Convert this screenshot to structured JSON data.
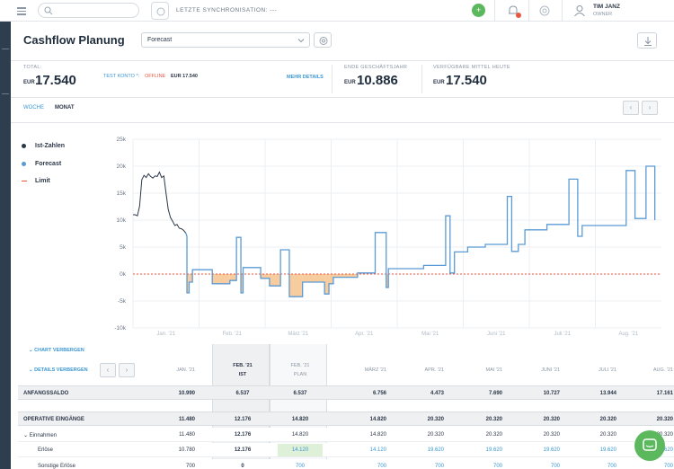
{
  "topbar": {
    "search_placeholder": "",
    "sync_text": "LETZTE SYNCHRONISATION: ---",
    "add_label": "+",
    "user_name": "TIM JANZ",
    "user_role": "OWNER"
  },
  "header": {
    "title": "Cashflow Planung",
    "scenario_selected": "Forecast"
  },
  "kpis": {
    "total_label": "TOTAL:",
    "total_currency": "EUR",
    "total_value": "17.540",
    "test_account_label": "TEST KONTO *:",
    "test_account_status": "OFFLINE",
    "test_account_value": "EUR 17.540",
    "more_details": "MEHR DETAILS",
    "year_end_label": "ENDE GESCHÄFTSJAHR",
    "year_end_currency": "EUR",
    "year_end_value": "10.886",
    "available_label": "VERFÜGBARE MITTEL HEUTE",
    "available_currency": "EUR",
    "available_value": "17.540"
  },
  "tabs": {
    "week": "WOCHE",
    "month": "MONAT"
  },
  "legend": {
    "actuals": "Ist-Zahlen",
    "forecast": "Forecast",
    "limit": "Limit"
  },
  "colors": {
    "actuals": "#2d3748",
    "forecast": "#5b9bd5",
    "limit": "#e8573f",
    "negative_fill": "#f6c48f",
    "accent": "#3b97d3",
    "green": "#5cb85c"
  },
  "chart_data": {
    "type": "line",
    "y_ticks": [
      "25k",
      "20k",
      "15k",
      "10k",
      "5k",
      "0k",
      "-5k",
      "-10k"
    ],
    "ylim": [
      -10000,
      25000
    ],
    "x_ticks": [
      "Jan. '21",
      "Feb. '21",
      "März '21",
      "Apr. '21",
      "Mai '21",
      "Juni '21",
      "Juli '21",
      "Aug. '21"
    ],
    "limit": 0,
    "series": [
      {
        "name": "Ist-Zahlen",
        "x": [
          0,
          1,
          2,
          3,
          4,
          5,
          6,
          7,
          8,
          9,
          10,
          11,
          12,
          13,
          14,
          15,
          16,
          17,
          18,
          19,
          20,
          21,
          22,
          23,
          24
        ],
        "values": [
          10990,
          10990,
          10800,
          12600,
          17500,
          18300,
          17900,
          18600,
          18100,
          17800,
          18200,
          18100,
          18900,
          17900,
          18200,
          15000,
          12000,
          10500,
          9800,
          9000,
          9200,
          8500,
          8400,
          8100,
          7600
        ]
      },
      {
        "name": "Forecast",
        "points": [
          [
            24,
            7600
          ],
          [
            24.5,
            7000
          ],
          [
            24.5,
            -3500
          ],
          [
            25.5,
            -3500
          ],
          [
            25.5,
            -1500
          ],
          [
            27,
            -1500
          ],
          [
            27,
            800
          ],
          [
            36,
            800
          ],
          [
            36,
            -1800
          ],
          [
            44,
            -1800
          ],
          [
            44,
            -1200
          ],
          [
            47,
            -1200
          ],
          [
            47,
            6800
          ],
          [
            49,
            6800
          ],
          [
            49,
            -3500
          ],
          [
            50,
            -3500
          ],
          [
            50,
            1200
          ],
          [
            58,
            1200
          ],
          [
            58,
            -800
          ],
          [
            62,
            -800
          ],
          [
            62,
            -2200
          ],
          [
            67,
            -2200
          ],
          [
            67,
            4500
          ],
          [
            71,
            4500
          ],
          [
            71,
            -4200
          ],
          [
            77,
            -4200
          ],
          [
            77,
            -1500
          ],
          [
            87,
            -1500
          ],
          [
            87,
            -3700
          ],
          [
            89,
            -3700
          ],
          [
            89,
            -1800
          ],
          [
            91,
            -1800
          ],
          [
            91,
            -600
          ],
          [
            102,
            -600
          ],
          [
            102,
            200
          ],
          [
            110,
            200
          ],
          [
            110,
            7700
          ],
          [
            115,
            7700
          ],
          [
            115,
            -2500
          ],
          [
            116,
            -2500
          ],
          [
            116,
            1000
          ],
          [
            132,
            1000
          ],
          [
            132,
            1600
          ],
          [
            142,
            1600
          ],
          [
            142,
            10800
          ],
          [
            144,
            10800
          ],
          [
            144,
            200
          ],
          [
            146,
            200
          ],
          [
            146,
            4100
          ],
          [
            152,
            4100
          ],
          [
            152,
            5000
          ],
          [
            160,
            5000
          ],
          [
            160,
            5500
          ],
          [
            170,
            5500
          ],
          [
            170,
            14400
          ],
          [
            172,
            14400
          ],
          [
            172,
            4200
          ],
          [
            175,
            4200
          ],
          [
            175,
            5500
          ],
          [
            178,
            5500
          ],
          [
            178,
            8200
          ],
          [
            188,
            8200
          ],
          [
            188,
            9200
          ],
          [
            198,
            9200
          ],
          [
            198,
            17600
          ],
          [
            202,
            17600
          ],
          [
            202,
            7000
          ],
          [
            204,
            7000
          ],
          [
            204,
            9000
          ],
          [
            224,
            9000
          ],
          [
            224,
            19200
          ],
          [
            228,
            19200
          ],
          [
            228,
            10300
          ],
          [
            233,
            10300
          ],
          [
            233,
            20000
          ],
          [
            237,
            20000
          ],
          [
            237,
            10000
          ]
        ]
      }
    ],
    "xlim": [
      0,
      240
    ]
  },
  "table": {
    "chart_toggle": "CHART VERBERGEN",
    "details_toggle": "DETAILS VERBERGEN",
    "months": [
      "JAN. '21",
      "FEB. '21",
      "FEB. '21",
      "MÄRZ '21",
      "APR. '21",
      "MAI '21",
      "JUNI '21",
      "JULI '21",
      "AUG. '21"
    ],
    "sub_ist": "IST",
    "sub_plan": "PLAN",
    "rows": [
      {
        "label": "ANFANGSSALDO",
        "values": [
          "10.990",
          "6.537",
          "6.537",
          "6.756",
          "4.473",
          "7.690",
          "10.727",
          "13.944",
          "17.161"
        ]
      },
      {
        "label": "OPERATIVE EINGÄNGE",
        "values": [
          "11.480",
          "12.176",
          "14.820",
          "14.820",
          "20.320",
          "20.320",
          "20.320",
          "20.320",
          "20.320"
        ]
      },
      {
        "label": "Einnahmen",
        "values": [
          "11.480",
          "12.176",
          "14.820",
          "14.820",
          "20.320",
          "20.320",
          "20.320",
          "20.320",
          "20.320"
        ]
      },
      {
        "label": "Erlöse",
        "values": [
          "10.780",
          "12.176",
          "14.120",
          "14.120",
          "19.620",
          "19.620",
          "19.620",
          "19.620",
          "19.620"
        ]
      },
      {
        "label": "Sonstige Erlöse",
        "values": [
          "700",
          "0",
          "700",
          "700",
          "700",
          "700",
          "700",
          "700",
          "700"
        ]
      }
    ]
  }
}
